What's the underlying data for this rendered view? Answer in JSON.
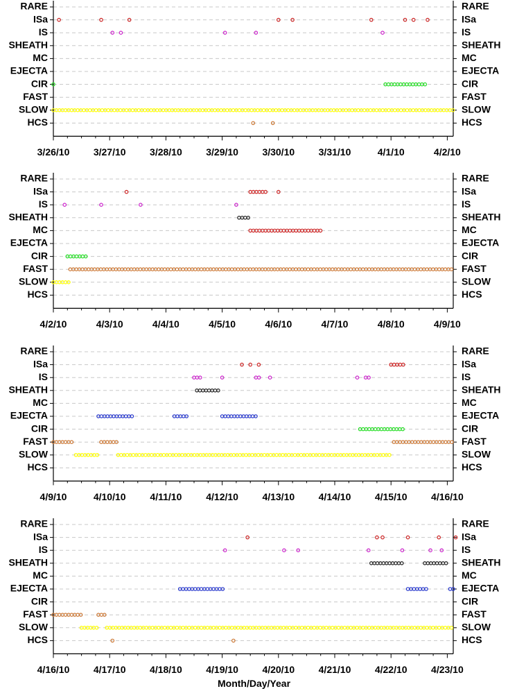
{
  "chart_data": [
    {
      "type": "scatter",
      "categories": [
        "RARE",
        "ISa",
        "IS",
        "SHEATH",
        "MC",
        "EJECTA",
        "CIR",
        "FAST",
        "SLOW",
        "HCS"
      ],
      "xlim_days": [
        0,
        7.15
      ],
      "tick_labels": [
        "3/26/10",
        "3/27/10",
        "3/28/10",
        "3/29/10",
        "3/30/10",
        "3/31/10",
        "4/1/10",
        "4/2/10"
      ],
      "series": [
        {
          "category": "ISa",
          "color": "#cc2222",
          "style": "points",
          "x": [
            0.1,
            0.85,
            1.35,
            4.0,
            4.25,
            5.65,
            6.25,
            6.4,
            6.65
          ]
        },
        {
          "category": "IS",
          "color": "#cc22cc",
          "style": "points",
          "x": [
            1.05,
            1.2,
            3.05,
            3.6,
            5.85
          ]
        },
        {
          "category": "CIR",
          "color": "#22dd22",
          "style": "dense",
          "ranges": [
            [
              0.0,
              0.05
            ],
            [
              5.9,
              6.65
            ]
          ]
        },
        {
          "category": "SLOW",
          "color": "#ffff00",
          "style": "dense",
          "ranges": [
            [
              0.0,
              7.15
            ]
          ]
        },
        {
          "category": "HCS",
          "color": "#cc7733",
          "style": "points",
          "x": [
            3.55,
            3.9
          ]
        }
      ]
    },
    {
      "type": "scatter",
      "categories": [
        "RARE",
        "ISa",
        "IS",
        "SHEATH",
        "MC",
        "EJECTA",
        "CIR",
        "FAST",
        "SLOW",
        "HCS"
      ],
      "xlim_days": [
        0,
        7.15
      ],
      "tick_labels": [
        "4/2/10",
        "4/3/10",
        "4/4/10",
        "4/5/10",
        "4/6/10",
        "4/7/10",
        "4/8/10",
        "4/9/10"
      ],
      "series": [
        {
          "category": "ISa",
          "color": "#cc2222",
          "style": "points",
          "x": [
            1.3,
            4.0
          ]
        },
        {
          "category": "ISa",
          "color": "#cc2222",
          "style": "dense",
          "ranges": [
            [
              3.5,
              3.8
            ]
          ]
        },
        {
          "category": "IS",
          "color": "#cc22cc",
          "style": "points",
          "x": [
            0.2,
            0.85,
            1.55,
            3.25
          ]
        },
        {
          "category": "SHEATH",
          "color": "#222222",
          "style": "dense",
          "ranges": [
            [
              3.3,
              3.5
            ]
          ]
        },
        {
          "category": "MC",
          "color": "#cc2222",
          "style": "dense",
          "ranges": [
            [
              3.5,
              4.75
            ]
          ]
        },
        {
          "category": "CIR",
          "color": "#22dd22",
          "style": "dense",
          "ranges": [
            [
              0.25,
              0.6
            ]
          ]
        },
        {
          "category": "FAST",
          "color": "#cc7733",
          "style": "dense",
          "ranges": [
            [
              0.3,
              7.15
            ]
          ]
        },
        {
          "category": "SLOW",
          "color": "#ffff00",
          "style": "dense",
          "ranges": [
            [
              0.0,
              0.3
            ]
          ]
        }
      ]
    },
    {
      "type": "scatter",
      "categories": [
        "RARE",
        "ISa",
        "IS",
        "SHEATH",
        "MC",
        "EJECTA",
        "CIR",
        "FAST",
        "SLOW",
        "HCS"
      ],
      "xlim_days": [
        0,
        7.15
      ],
      "tick_labels": [
        "4/9/10",
        "4/10/10",
        "4/11/10",
        "4/12/10",
        "4/13/10",
        "4/14/10",
        "4/15/10",
        "4/16/10"
      ],
      "series": [
        {
          "category": "ISa",
          "color": "#cc2222",
          "style": "points",
          "x": [
            3.35,
            3.5,
            3.65
          ]
        },
        {
          "category": "ISa",
          "color": "#cc2222",
          "style": "dense",
          "ranges": [
            [
              6.0,
              6.25
            ]
          ]
        },
        {
          "category": "IS",
          "color": "#cc22cc",
          "style": "points",
          "x": [
            3.0,
            3.85
          ]
        },
        {
          "category": "IS",
          "color": "#cc22cc",
          "style": "dense",
          "ranges": [
            [
              2.5,
              2.65
            ],
            [
              3.6,
              3.7
            ],
            [
              5.4,
              5.45
            ],
            [
              5.55,
              5.65
            ]
          ]
        },
        {
          "category": "SHEATH",
          "color": "#222222",
          "style": "dense",
          "ranges": [
            [
              2.55,
              2.95
            ]
          ]
        },
        {
          "category": "EJECTA",
          "color": "#2233cc",
          "style": "dense",
          "ranges": [
            [
              0.8,
              1.45
            ],
            [
              2.15,
              2.4
            ],
            [
              3.0,
              3.6
            ]
          ]
        },
        {
          "category": "CIR",
          "color": "#22dd22",
          "style": "dense",
          "ranges": [
            [
              5.45,
              6.25
            ]
          ]
        },
        {
          "category": "FAST",
          "color": "#cc7733",
          "style": "dense",
          "ranges": [
            [
              0.0,
              0.35
            ],
            [
              0.85,
              1.15
            ],
            [
              6.05,
              7.15
            ]
          ]
        },
        {
          "category": "SLOW",
          "color": "#ffff00",
          "style": "dense",
          "ranges": [
            [
              0.4,
              0.8
            ],
            [
              1.15,
              6.0
            ]
          ]
        }
      ]
    },
    {
      "type": "scatter",
      "categories": [
        "RARE",
        "ISa",
        "IS",
        "SHEATH",
        "MC",
        "EJECTA",
        "CIR",
        "FAST",
        "SLOW",
        "HCS"
      ],
      "xlim_days": [
        0,
        7.15
      ],
      "tick_labels": [
        "4/16/10",
        "4/17/10",
        "4/18/10",
        "4/19/10",
        "4/20/10",
        "4/21/10",
        "4/22/10",
        "4/23/10"
      ],
      "series": [
        {
          "category": "ISa",
          "color": "#cc2222",
          "style": "points",
          "x": [
            3.45,
            5.75,
            5.85,
            6.3,
            6.85,
            7.15
          ]
        },
        {
          "category": "IS",
          "color": "#cc22cc",
          "style": "points",
          "x": [
            3.05,
            4.1,
            4.35,
            5.6,
            6.2,
            6.7,
            6.9
          ]
        },
        {
          "category": "SHEATH",
          "color": "#222222",
          "style": "dense",
          "ranges": [
            [
              5.65,
              6.2
            ],
            [
              6.6,
              7.0
            ]
          ]
        },
        {
          "category": "EJECTA",
          "color": "#2233cc",
          "style": "dense",
          "ranges": [
            [
              2.25,
              3.05
            ],
            [
              6.3,
              6.65
            ],
            [
              7.05,
              7.15
            ]
          ]
        },
        {
          "category": "FAST",
          "color": "#cc7733",
          "style": "dense",
          "ranges": [
            [
              0.0,
              0.5
            ],
            [
              0.8,
              0.95
            ]
          ]
        },
        {
          "category": "SLOW",
          "color": "#ffff00",
          "style": "dense",
          "ranges": [
            [
              0.5,
              0.8
            ],
            [
              0.95,
              7.15
            ]
          ]
        },
        {
          "category": "HCS",
          "color": "#cc7733",
          "style": "points",
          "x": [
            1.05,
            3.2
          ]
        }
      ]
    }
  ],
  "xlabel": "Month/Day/Year"
}
